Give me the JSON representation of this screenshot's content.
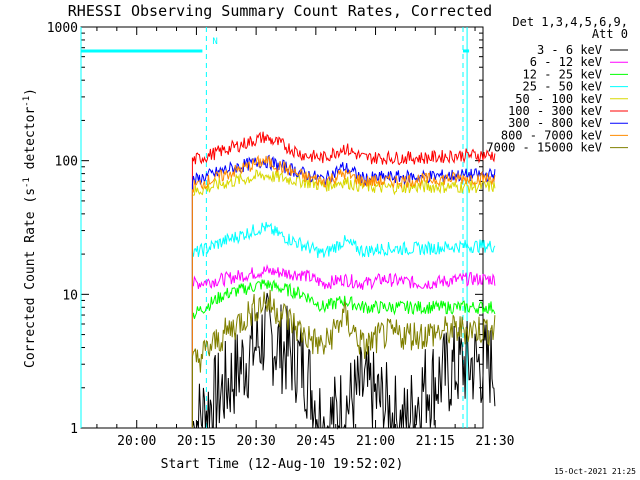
{
  "chart_data": {
    "type": "line",
    "title": "RHESSI Observing Summary Count Rates, Corrected",
    "xlabel": "Start Time (12-Aug-10 19:52:02)",
    "ylabel_main": "Corrected Count Rate (s",
    "ylabel_sup1": "-1",
    "ylabel_mid": " detector",
    "ylabel_sup2": "-1",
    "ylabel_end": ")",
    "yscale": "log",
    "ylim": [
      1,
      1000
    ],
    "xlim_minutes": [
      -6,
      95
    ],
    "x_ticks": [
      {
        "label": "20:00",
        "minute": 8
      },
      {
        "label": "20:15",
        "minute": 23
      },
      {
        "label": "20:30",
        "minute": 38
      },
      {
        "label": "20:45",
        "minute": 53
      },
      {
        "label": "21:00",
        "minute": 68
      },
      {
        "label": "21:15",
        "minute": 83
      },
      {
        "label": "21:30",
        "minute": 98
      }
    ],
    "y_ticks": [
      {
        "label": "1",
        "value": 1
      },
      {
        "label": "10",
        "value": 10
      },
      {
        "label": "100",
        "value": 100
      },
      {
        "label": "1000",
        "value": 1000
      }
    ],
    "legend_header": [
      "Det 1,3,4,5,6,9,",
      "Att 0"
    ],
    "legend_position": "right",
    "grid": false,
    "data_start_minute": 22,
    "data_end_minute": 98,
    "series": [
      {
        "name": "3 - 6 keV",
        "color": "#000000",
        "x": [
          22,
          30,
          40,
          50,
          55,
          65,
          70,
          75,
          80,
          90,
          96
        ],
        "y": [
          1,
          2,
          5,
          3,
          1,
          2,
          1.5,
          1,
          2,
          3,
          3
        ]
      },
      {
        "name": "6 - 12 keV",
        "color": "#ff00ff",
        "x": [
          22,
          30,
          40,
          50,
          55,
          60,
          65,
          70,
          80,
          90,
          96
        ],
        "y": [
          12,
          13,
          15,
          14,
          12,
          13,
          12,
          13,
          12,
          13,
          13
        ]
      },
      {
        "name": "12 - 25 keV",
        "color": "#00ff00",
        "x": [
          22,
          30,
          40,
          50,
          55,
          60,
          65,
          70,
          80,
          90,
          96
        ],
        "y": [
          7,
          10,
          12,
          10,
          8,
          9,
          8,
          8,
          8,
          8,
          8
        ]
      },
      {
        "name": "25 - 50 keV",
        "color": "#00ffff",
        "x": [
          22,
          30,
          40,
          45,
          55,
          60,
          65,
          70,
          80,
          90,
          96
        ],
        "y": [
          20,
          25,
          32,
          27,
          20,
          25,
          21,
          22,
          22,
          23,
          23
        ]
      },
      {
        "name": "50 - 100 keV",
        "color": "#d8d800",
        "x": [
          22,
          30,
          40,
          50,
          55,
          60,
          65,
          70,
          80,
          90,
          96
        ],
        "y": [
          58,
          68,
          78,
          70,
          65,
          70,
          64,
          63,
          64,
          64,
          64
        ]
      },
      {
        "name": "100 - 300 keV",
        "color": "#ff0000",
        "x": [
          22,
          30,
          40,
          45,
          50,
          55,
          60,
          65,
          70,
          80,
          90,
          96
        ],
        "y": [
          100,
          120,
          150,
          130,
          110,
          105,
          125,
          105,
          105,
          105,
          110,
          110
        ]
      },
      {
        "name": "300 - 800 keV",
        "color": "#0000ff",
        "x": [
          22,
          30,
          40,
          45,
          50,
          55,
          60,
          65,
          70,
          80,
          90,
          96
        ],
        "y": [
          70,
          85,
          100,
          90,
          80,
          72,
          90,
          73,
          75,
          76,
          78,
          78
        ]
      },
      {
        "name": "800 - 7000 keV",
        "color": "#ff8c00",
        "x": [
          22,
          30,
          40,
          45,
          50,
          55,
          60,
          65,
          70,
          80,
          90,
          96
        ],
        "y": [
          64,
          78,
          100,
          88,
          76,
          70,
          80,
          70,
          70,
          72,
          74,
          74
        ]
      },
      {
        "name": "7000 - 15000 keV",
        "color": "#808000",
        "x": [
          22,
          30,
          40,
          45,
          50,
          55,
          60,
          65,
          70,
          80,
          90,
          96
        ],
        "y": [
          3,
          5,
          9,
          7,
          5,
          4,
          7,
          4,
          5,
          5,
          5.5,
          5.5
        ]
      }
    ],
    "annotations": {
      "n_marker_label": "N",
      "solid_lines_minute": [
        -6,
        91
      ],
      "dashed_lines_minute": [
        25.5,
        92.5,
        110
      ],
      "night_bars": [
        {
          "from": -6,
          "to": 24.5,
          "value": 800
        },
        {
          "from": 91.5,
          "to": 110,
          "value": 800
        }
      ]
    },
    "colors": {
      "marker": "#00ffff"
    }
  },
  "timestamp": "15-Oct-2021 21:25"
}
